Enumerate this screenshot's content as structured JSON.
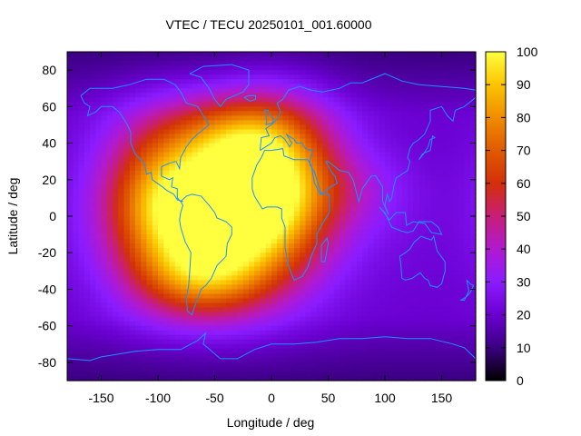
{
  "chart_data": {
    "type": "heatmap",
    "title": "VTEC / TECU 20250101_001.60000",
    "xlabel": "Longitude / deg",
    "ylabel": "Latitude / deg",
    "xlim": [
      -180,
      180
    ],
    "ylim": [
      -90,
      90
    ],
    "xticks": [
      -150,
      -100,
      -50,
      0,
      50,
      100,
      150
    ],
    "yticks": [
      -80,
      -60,
      -40,
      -20,
      0,
      20,
      40,
      60,
      80
    ],
    "colorbar": {
      "range": [
        0,
        100
      ],
      "ticks": [
        0,
        10,
        20,
        30,
        40,
        50,
        60,
        70,
        80,
        90,
        100
      ],
      "palette_stops": [
        "#000000",
        "#3a0080",
        "#6a00d0",
        "#8a1cff",
        "#b01ad0",
        "#c81e78",
        "#d2300a",
        "#e05a00",
        "#f08c00",
        "#fbc400",
        "#ffff40"
      ]
    },
    "overlay": "coastlines",
    "coastline_color": "#1e90ff",
    "background_level": 20,
    "peaks": [
      {
        "lon": -45,
        "lat": 0,
        "value": 95,
        "sigma_lon": 55,
        "sigma_lat": 30
      },
      {
        "lon": 0,
        "lat": 20,
        "value": 70,
        "sigma_lon": 40,
        "sigma_lat": 30
      },
      {
        "lon": -100,
        "lat": 10,
        "value": 55,
        "sigma_lon": 35,
        "sigma_lat": 30
      },
      {
        "lon": -30,
        "lat": 45,
        "value": 45,
        "sigma_lon": 45,
        "sigma_lat": 15
      },
      {
        "lon": -60,
        "lat": -35,
        "value": 50,
        "sigma_lon": 40,
        "sigma_lat": 15
      },
      {
        "lon": 70,
        "lat": 15,
        "value": 30,
        "sigma_lon": 40,
        "sigma_lat": 15
      },
      {
        "lon": 110,
        "lat": -10,
        "value": 22,
        "sigma_lon": 40,
        "sigma_lat": 20
      }
    ]
  }
}
